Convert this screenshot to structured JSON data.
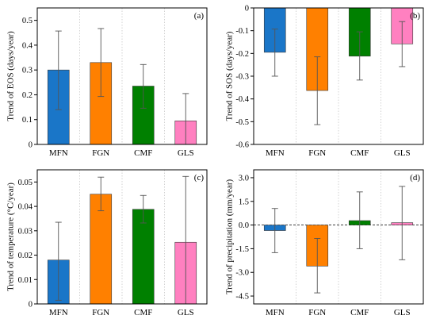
{
  "categories": [
    "MFN",
    "FGN",
    "CMF",
    "GLS"
  ],
  "colors": [
    "#1a76c8",
    "#ff8000",
    "#008000",
    "#ff80c0"
  ],
  "chart_data": [
    {
      "type": "bar",
      "panel": "(a)",
      "categories": [
        "MFN",
        "FGN",
        "CMF",
        "GLS"
      ],
      "values": [
        0.3,
        0.33,
        0.235,
        0.095
      ],
      "error_low": [
        0.14,
        0.193,
        0.146,
        0.0
      ],
      "error_high": [
        0.457,
        0.467,
        0.322,
        0.205
      ],
      "ylabel": "Trend of EOS (days/year)",
      "ylim": [
        0,
        0.55
      ],
      "yticks": [
        "0",
        "0.1",
        "0.2",
        "0.3",
        "0.4",
        "0.5"
      ],
      "ytick_values": [
        0,
        0.1,
        0.2,
        0.3,
        0.4,
        0.5
      ],
      "baseline": 0,
      "zero_line": false
    },
    {
      "type": "bar",
      "panel": "(b)",
      "categories": [
        "MFN",
        "FGN",
        "CMF",
        "GLS"
      ],
      "values": [
        -0.195,
        -0.363,
        -0.212,
        -0.158
      ],
      "error_low": [
        -0.3,
        -0.513,
        -0.317,
        -0.258
      ],
      "error_high": [
        -0.093,
        -0.215,
        -0.105,
        -0.06
      ],
      "ylabel": "Trend of SOS (days/year)",
      "ylim": [
        -0.6,
        0
      ],
      "yticks": [
        "-0.6",
        "-0.5",
        "-0.4",
        "-0.3",
        "-0.2",
        "-0.1",
        "0"
      ],
      "ytick_values": [
        -0.6,
        -0.5,
        -0.4,
        -0.3,
        -0.2,
        -0.1,
        0
      ],
      "baseline": 0,
      "zero_line": false
    },
    {
      "type": "bar",
      "panel": "(c)",
      "categories": [
        "MFN",
        "FGN",
        "CMF",
        "GLS"
      ],
      "values": [
        0.018,
        0.045,
        0.0388,
        0.0253
      ],
      "error_low": [
        0.0015,
        0.0382,
        0.0332,
        0.0
      ],
      "error_high": [
        0.0335,
        0.052,
        0.0445,
        0.0523
      ],
      "ylabel": "Trend of temperature (°C/year)",
      "ylim": [
        0,
        0.055
      ],
      "yticks": [
        "0",
        "0.01",
        "0.02",
        "0.03",
        "0.04",
        "0.05"
      ],
      "ytick_values": [
        0,
        0.01,
        0.02,
        0.03,
        0.04,
        0.05
      ],
      "baseline": 0,
      "zero_line": false
    },
    {
      "type": "bar",
      "panel": "(d)",
      "categories": [
        "MFN",
        "FGN",
        "CMF",
        "GLS"
      ],
      "values": [
        -0.35,
        -2.6,
        0.28,
        0.15
      ],
      "error_low": [
        -1.75,
        -4.3,
        -1.5,
        -2.2
      ],
      "error_high": [
        1.05,
        -0.85,
        2.1,
        2.45
      ],
      "ylabel": "Trend of precipitation (mm/year)",
      "ylim": [
        -5,
        3.5
      ],
      "yticks": [
        "-4.5",
        "-3.0",
        "-1.5",
        "0.0",
        "1.5",
        "3.0"
      ],
      "ytick_values": [
        -4.5,
        -3.0,
        -1.5,
        0.0,
        1.5,
        3.0
      ],
      "baseline": 0,
      "zero_line": true
    }
  ]
}
